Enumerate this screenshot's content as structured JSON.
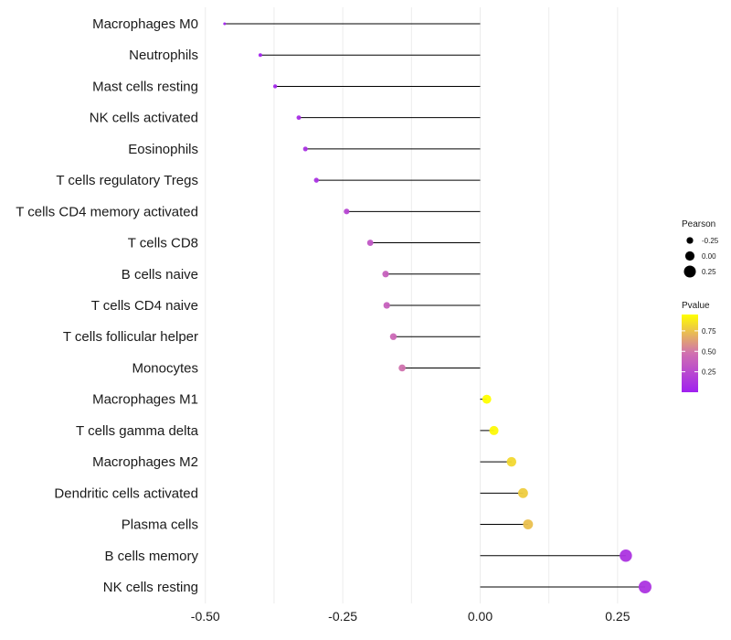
{
  "chart_data": {
    "type": "lollipop",
    "title": "",
    "xlabel": "",
    "ylabel": "",
    "xlim": [
      -0.5,
      0.3
    ],
    "xticks": [
      -0.5,
      -0.25,
      0.0,
      0.25
    ],
    "xtick_labels": [
      "-0.50",
      "-0.25",
      "0.00",
      "0.25"
    ],
    "baseline": 0.0,
    "grid": "vertical",
    "categories": [
      "Macrophages M0",
      "Neutrophils",
      "Mast cells resting",
      "NK cells activated",
      "Eosinophils",
      "T cells regulatory  Tregs",
      "T cells CD4 memory activated",
      "T cells CD8",
      "B cells naive",
      "T cells CD4 naive",
      "T cells follicular helper",
      "Monocytes",
      "Macrophages M1",
      "T cells gamma delta",
      "Macrophages M2",
      "Dendritic cells activated",
      "Plasma cells",
      "B cells memory",
      "NK cells resting"
    ],
    "series": [
      {
        "name": "Pearson",
        "values": [
          -0.465,
          -0.4,
          -0.373,
          -0.33,
          -0.318,
          -0.298,
          -0.243,
          -0.2,
          -0.172,
          -0.17,
          -0.158,
          -0.142,
          0.012,
          0.025,
          0.057,
          0.078,
          0.087,
          0.265,
          0.3
        ]
      },
      {
        "name": "Pvalue",
        "values": [
          0.02,
          0.02,
          0.03,
          0.08,
          0.1,
          0.1,
          0.22,
          0.32,
          0.38,
          0.38,
          0.43,
          0.48,
          0.95,
          0.93,
          0.82,
          0.78,
          0.74,
          0.12,
          0.12
        ]
      }
    ],
    "legend": {
      "position": "right",
      "size_title": "Pearson",
      "size_values": [
        -0.25,
        0.0,
        0.25
      ],
      "size_labels": [
        "-0.25",
        "0.00",
        "0.25"
      ],
      "color_title": "Pvalue",
      "color_values": [
        0.75,
        0.5,
        0.25
      ],
      "color_labels": [
        "0.75",
        "0.50",
        "0.25"
      ],
      "color_range": [
        0.0,
        0.95
      ],
      "colors": [
        "#a020f0",
        "#d070b0",
        "#ffff00"
      ]
    }
  }
}
